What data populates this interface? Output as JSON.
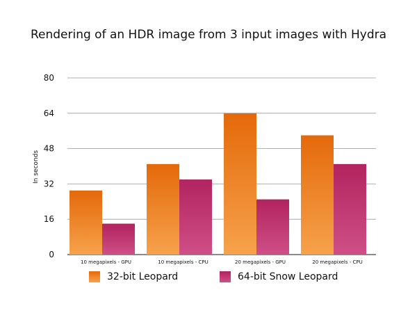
{
  "chart_data": {
    "type": "bar",
    "title": "Rendering of an HDR image from 3 input images with Hydra",
    "xlabel": "",
    "ylabel": "In seconds",
    "ylim": [
      0,
      80
    ],
    "yticks": [
      0,
      16,
      32,
      48,
      64,
      80
    ],
    "categories": [
      "10 megapixels - GPU",
      "10 megapixels - CPU",
      "20 megapixels - GPU",
      "20 megapixels - CPU"
    ],
    "series": [
      {
        "name": "32-bit Leopard",
        "values": [
          29,
          41,
          64,
          54
        ],
        "color": "#e8730f"
      },
      {
        "name": "64-bit Snow Leopard",
        "values": [
          14,
          34,
          25,
          41
        ],
        "color": "#b92f6e"
      }
    ],
    "grid": true,
    "legend": "bottom"
  }
}
